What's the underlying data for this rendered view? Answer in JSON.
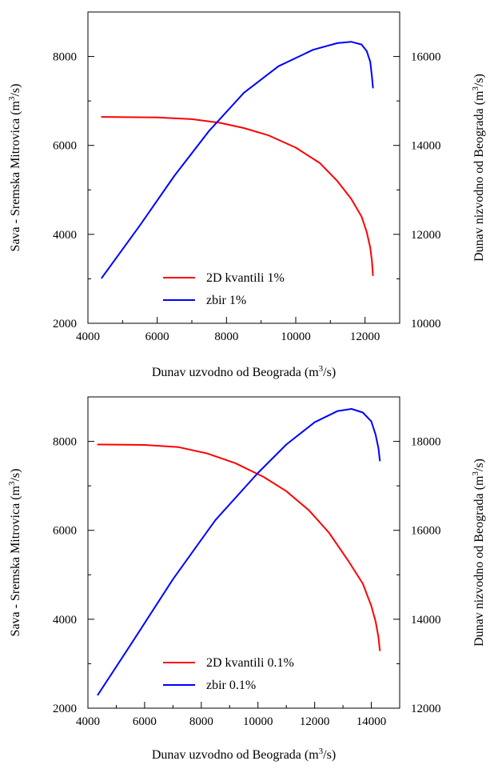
{
  "chart_data": [
    {
      "type": "line",
      "xlabel": "Dunav uzvodno od Beograda (m<sup>3</sup>/s)",
      "ylabel_left": "Sava - Sremska Mitrovica (m<sup>3</sup>/s)",
      "ylabel_right": "Dunav nizvodno od Beograda (m<sup>3</sup>/s)",
      "xlim": [
        4000,
        13000
      ],
      "ylim_left": [
        2000,
        9000
      ],
      "ylim_right": [
        10000,
        17000
      ],
      "xticks": [
        4000,
        6000,
        8000,
        10000,
        12000
      ],
      "yticks_left": [
        2000,
        4000,
        6000,
        8000
      ],
      "yticks_right": [
        10000,
        12000,
        14000,
        16000
      ],
      "grid": false,
      "legend_position": "bottom-center",
      "series": [
        {
          "name": "2D kvantili 1%",
          "color": "#ff0000",
          "axis": "left",
          "x": [
            4400,
            6000,
            7000,
            7800,
            8500,
            9200,
            10000,
            10700,
            11200,
            11600,
            11900,
            12050,
            12150,
            12200,
            12230
          ],
          "y": [
            6640,
            6630,
            6590,
            6510,
            6390,
            6230,
            5950,
            5600,
            5200,
            4800,
            4400,
            4050,
            3700,
            3400,
            3080
          ]
        },
        {
          "name": "zbir 1%",
          "color": "#0000ff",
          "axis": "right",
          "x": [
            4400,
            5500,
            6500,
            7500,
            8500,
            9500,
            10500,
            11200,
            11600,
            11900,
            12050,
            12150,
            12200,
            12230
          ],
          "y": [
            11020,
            12200,
            13320,
            14330,
            15180,
            15780,
            16150,
            16300,
            16330,
            16270,
            16120,
            15880,
            15550,
            15300
          ]
        }
      ]
    },
    {
      "type": "line",
      "xlabel": "Dunav uzvodno od Beograda (m<sup>3</sup>/s)",
      "ylabel_left": "Sava - Sremska Mitrovica (m<sup>3</sup>/s)",
      "ylabel_right": "Dunav nizvodno od Beograda (m<sup>3</sup>/s)",
      "xlim": [
        4000,
        15000
      ],
      "ylim_left": [
        2000,
        9000
      ],
      "ylim_right": [
        12000,
        19000
      ],
      "xticks": [
        4000,
        6000,
        8000,
        10000,
        12000,
        14000
      ],
      "yticks_left": [
        2000,
        4000,
        6000,
        8000
      ],
      "yticks_right": [
        12000,
        14000,
        16000,
        18000
      ],
      "grid": false,
      "legend_position": "bottom-center",
      "series": [
        {
          "name": "2D kvantili 0.1%",
          "color": "#ff0000",
          "axis": "left",
          "x": [
            4350,
            6000,
            7200,
            8200,
            9200,
            10200,
            11000,
            11800,
            12500,
            13200,
            13700,
            14000,
            14150,
            14250,
            14300
          ],
          "y": [
            7930,
            7920,
            7870,
            7730,
            7510,
            7200,
            6880,
            6450,
            5950,
            5300,
            4800,
            4300,
            3950,
            3600,
            3300
          ]
        },
        {
          "name": "zbir 0.1%",
          "color": "#0000ff",
          "axis": "right",
          "x": [
            4350,
            5500,
            7000,
            8500,
            10000,
            11000,
            12000,
            12800,
            13300,
            13700,
            14000,
            14150,
            14250,
            14300
          ],
          "y": [
            12300,
            13420,
            14900,
            16230,
            17290,
            17930,
            18430,
            18680,
            18730,
            18650,
            18450,
            18150,
            17850,
            17570
          ]
        }
      ]
    }
  ]
}
